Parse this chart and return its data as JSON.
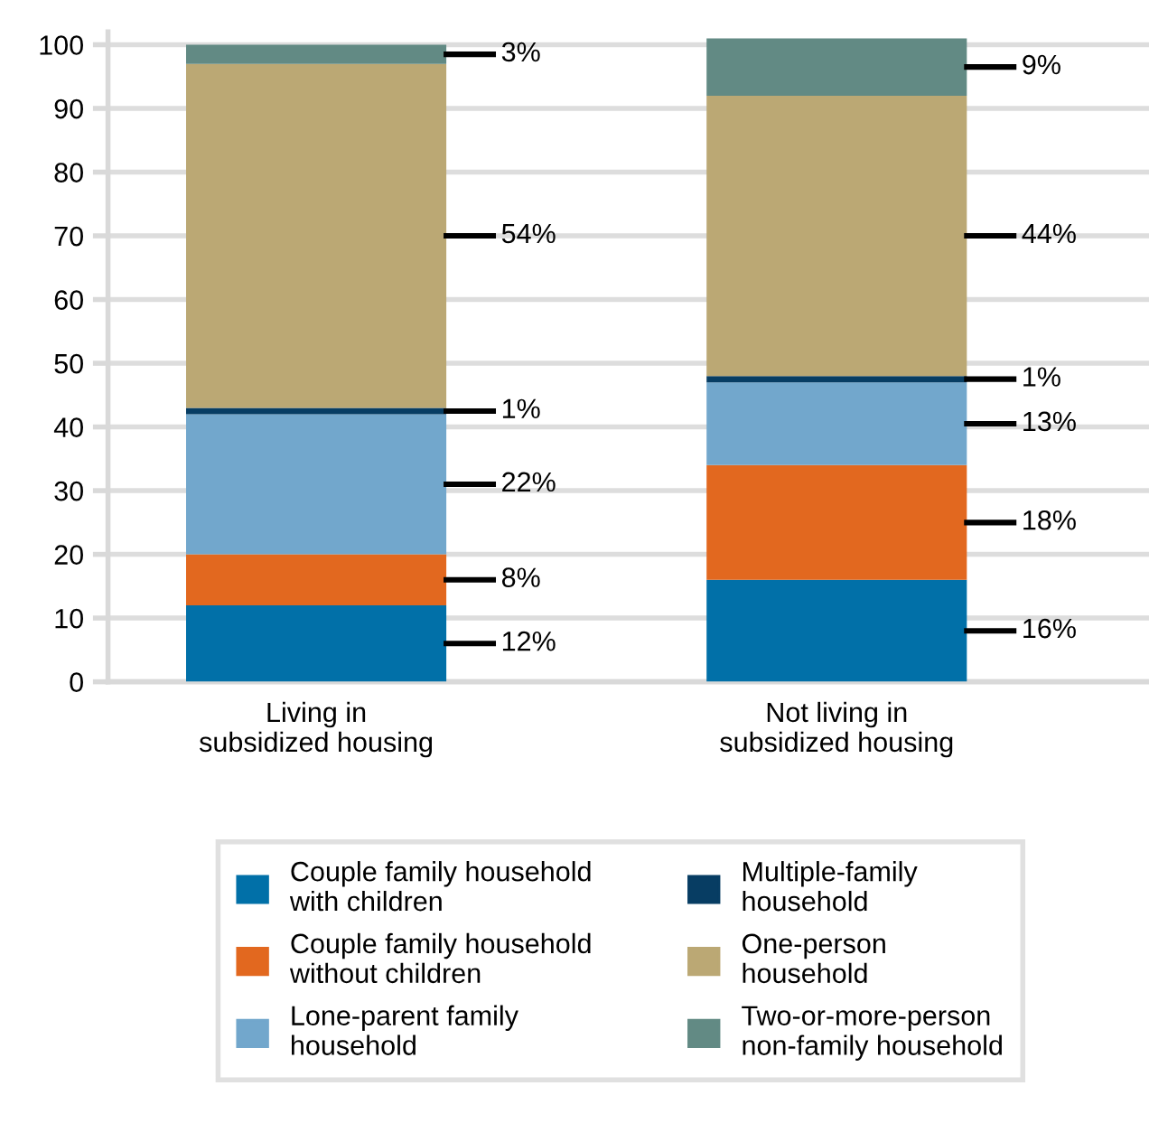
{
  "chart_data": {
    "type": "bar",
    "stacked": true,
    "categories": [
      "Living in\nsubsidized housing",
      "Not living in\nsubsidized housing"
    ],
    "series": [
      {
        "name": "Couple family household\nwith children",
        "color": "#0170a8",
        "values": [
          12,
          16
        ],
        "value_labels": [
          "12%",
          "16%"
        ]
      },
      {
        "name": "Couple family household\nwithout children",
        "color": "#e2681f",
        "values": [
          8,
          18
        ],
        "value_labels": [
          "8%",
          "18%"
        ]
      },
      {
        "name": "Lone-parent family\nhousehold",
        "color": "#72a7cc",
        "values": [
          22,
          13
        ],
        "value_labels": [
          "22%",
          "13%"
        ]
      },
      {
        "name": "Multiple-family\nhousehold",
        "color": "#073d63",
        "values": [
          1,
          1
        ],
        "value_labels": [
          "1%",
          "1%"
        ]
      },
      {
        "name": "One-person\nhousehold",
        "color": "#bba874",
        "values": [
          54,
          44
        ],
        "value_labels": [
          "54%",
          "44%"
        ]
      },
      {
        "name": "Two-or-more-person\nnon-family household",
        "color": "#628a84",
        "values": [
          3,
          9
        ],
        "value_labels": [
          "3%",
          "9%"
        ]
      }
    ],
    "ylim": [
      0,
      102
    ],
    "yticks": [
      0,
      10,
      20,
      30,
      40,
      50,
      60,
      70,
      80,
      90,
      100
    ],
    "grid": "y",
    "legend": "bottom"
  }
}
